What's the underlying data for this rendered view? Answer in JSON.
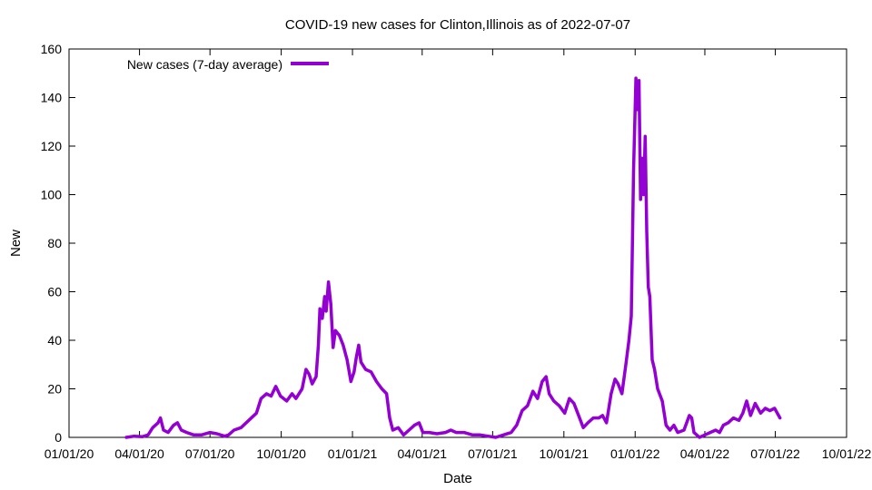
{
  "chart_data": {
    "type": "line",
    "title": "COVID-19 new cases for Clinton,Illinois as of 2022-07-07",
    "xlabel": "Date",
    "ylabel": "New",
    "x_axis": {
      "type": "date",
      "range": [
        "2020-01-01",
        "2022-10-01"
      ],
      "tick_labels": [
        "01/01/20",
        "04/01/20",
        "07/01/20",
        "10/01/20",
        "01/01/21",
        "04/01/21",
        "07/01/21",
        "10/01/21",
        "01/01/22",
        "04/01/22",
        "07/01/22",
        "10/01/22"
      ]
    },
    "y_axis": {
      "range": [
        0,
        160
      ],
      "tick_labels": [
        "0",
        "20",
        "40",
        "60",
        "80",
        "100",
        "120",
        "140",
        "160"
      ]
    },
    "grid": false,
    "legend_position": "top-left",
    "series": [
      {
        "name": "New cases (7-day average)",
        "color": "#9400d3",
        "points": [
          [
            "2020-03-15",
            0
          ],
          [
            "2020-03-25",
            0.5
          ],
          [
            "2020-04-05",
            0.3
          ],
          [
            "2020-04-12",
            1
          ],
          [
            "2020-04-18",
            4
          ],
          [
            "2020-04-25",
            6
          ],
          [
            "2020-04-28",
            8
          ],
          [
            "2020-05-02",
            3
          ],
          [
            "2020-05-08",
            2
          ],
          [
            "2020-05-15",
            5
          ],
          [
            "2020-05-20",
            6
          ],
          [
            "2020-05-25",
            3
          ],
          [
            "2020-06-01",
            2
          ],
          [
            "2020-06-10",
            1
          ],
          [
            "2020-06-20",
            1
          ],
          [
            "2020-07-01",
            2
          ],
          [
            "2020-07-10",
            1.5
          ],
          [
            "2020-07-20",
            0.5
          ],
          [
            "2020-07-25",
            1
          ],
          [
            "2020-08-01",
            3
          ],
          [
            "2020-08-10",
            4
          ],
          [
            "2020-08-20",
            7
          ],
          [
            "2020-08-30",
            10
          ],
          [
            "2020-09-05",
            16
          ],
          [
            "2020-09-12",
            18
          ],
          [
            "2020-09-18",
            17
          ],
          [
            "2020-09-24",
            21
          ],
          [
            "2020-09-30",
            17
          ],
          [
            "2020-10-08",
            15
          ],
          [
            "2020-10-15",
            18
          ],
          [
            "2020-10-20",
            16
          ],
          [
            "2020-10-28",
            20
          ],
          [
            "2020-11-02",
            28
          ],
          [
            "2020-11-06",
            26
          ],
          [
            "2020-11-10",
            22
          ],
          [
            "2020-11-15",
            25
          ],
          [
            "2020-11-18",
            38
          ],
          [
            "2020-11-20",
            53
          ],
          [
            "2020-11-23",
            49
          ],
          [
            "2020-11-26",
            58
          ],
          [
            "2020-11-28",
            52
          ],
          [
            "2020-12-01",
            64
          ],
          [
            "2020-12-04",
            55
          ],
          [
            "2020-12-07",
            37
          ],
          [
            "2020-12-10",
            44
          ],
          [
            "2020-12-15",
            42
          ],
          [
            "2020-12-20",
            38
          ],
          [
            "2020-12-25",
            32
          ],
          [
            "2020-12-30",
            23
          ],
          [
            "2021-01-03",
            27
          ],
          [
            "2021-01-06",
            33
          ],
          [
            "2021-01-09",
            38
          ],
          [
            "2021-01-12",
            31
          ],
          [
            "2021-01-18",
            28
          ],
          [
            "2021-01-25",
            27
          ],
          [
            "2021-02-01",
            23
          ],
          [
            "2021-02-08",
            20
          ],
          [
            "2021-02-14",
            18
          ],
          [
            "2021-02-18",
            8
          ],
          [
            "2021-02-22",
            3
          ],
          [
            "2021-03-01",
            4
          ],
          [
            "2021-03-08",
            1
          ],
          [
            "2021-03-15",
            3
          ],
          [
            "2021-03-22",
            5
          ],
          [
            "2021-03-28",
            6
          ],
          [
            "2021-04-02",
            2
          ],
          [
            "2021-04-10",
            2
          ],
          [
            "2021-04-20",
            1.5
          ],
          [
            "2021-05-01",
            2
          ],
          [
            "2021-05-08",
            3
          ],
          [
            "2021-05-15",
            2
          ],
          [
            "2021-05-25",
            2
          ],
          [
            "2021-06-05",
            1
          ],
          [
            "2021-06-15",
            1
          ],
          [
            "2021-06-25",
            0.5
          ],
          [
            "2021-07-05",
            0
          ],
          [
            "2021-07-15",
            1
          ],
          [
            "2021-07-25",
            2
          ],
          [
            "2021-08-01",
            5
          ],
          [
            "2021-08-08",
            11
          ],
          [
            "2021-08-15",
            13
          ],
          [
            "2021-08-22",
            19
          ],
          [
            "2021-08-28",
            16
          ],
          [
            "2021-09-03",
            23
          ],
          [
            "2021-09-08",
            25
          ],
          [
            "2021-09-12",
            18
          ],
          [
            "2021-09-18",
            15
          ],
          [
            "2021-09-25",
            13
          ],
          [
            "2021-10-02",
            10
          ],
          [
            "2021-10-08",
            16
          ],
          [
            "2021-10-14",
            14
          ],
          [
            "2021-10-20",
            9
          ],
          [
            "2021-10-26",
            4
          ],
          [
            "2021-11-01",
            6
          ],
          [
            "2021-11-08",
            8
          ],
          [
            "2021-11-15",
            8
          ],
          [
            "2021-11-20",
            9
          ],
          [
            "2021-11-25",
            6
          ],
          [
            "2021-12-01",
            18
          ],
          [
            "2021-12-06",
            24
          ],
          [
            "2021-12-10",
            22
          ],
          [
            "2021-12-15",
            18
          ],
          [
            "2021-12-20",
            30
          ],
          [
            "2021-12-24",
            40
          ],
          [
            "2021-12-27",
            50
          ],
          [
            "2021-12-30",
            110
          ],
          [
            "2022-01-02",
            148
          ],
          [
            "2022-01-04",
            135
          ],
          [
            "2022-01-06",
            147
          ],
          [
            "2022-01-08",
            98
          ],
          [
            "2022-01-10",
            115
          ],
          [
            "2022-01-12",
            100
          ],
          [
            "2022-01-14",
            124
          ],
          [
            "2022-01-16",
            85
          ],
          [
            "2022-01-18",
            62
          ],
          [
            "2022-01-20",
            58
          ],
          [
            "2022-01-23",
            32
          ],
          [
            "2022-01-26",
            28
          ],
          [
            "2022-01-30",
            20
          ],
          [
            "2022-02-05",
            15
          ],
          [
            "2022-02-10",
            5
          ],
          [
            "2022-02-15",
            3
          ],
          [
            "2022-02-20",
            5
          ],
          [
            "2022-02-25",
            2
          ],
          [
            "2022-03-05",
            3
          ],
          [
            "2022-03-12",
            9
          ],
          [
            "2022-03-15",
            8
          ],
          [
            "2022-03-18",
            2
          ],
          [
            "2022-03-25",
            0
          ],
          [
            "2022-04-01",
            1
          ],
          [
            "2022-04-08",
            2
          ],
          [
            "2022-04-15",
            3
          ],
          [
            "2022-04-20",
            2
          ],
          [
            "2022-04-25",
            5
          ],
          [
            "2022-05-01",
            6
          ],
          [
            "2022-05-08",
            8
          ],
          [
            "2022-05-15",
            7
          ],
          [
            "2022-05-20",
            10
          ],
          [
            "2022-05-25",
            15
          ],
          [
            "2022-05-30",
            9
          ],
          [
            "2022-06-05",
            14
          ],
          [
            "2022-06-12",
            10
          ],
          [
            "2022-06-18",
            12
          ],
          [
            "2022-06-24",
            11
          ],
          [
            "2022-06-30",
            12
          ],
          [
            "2022-07-07",
            8
          ]
        ]
      }
    ]
  }
}
